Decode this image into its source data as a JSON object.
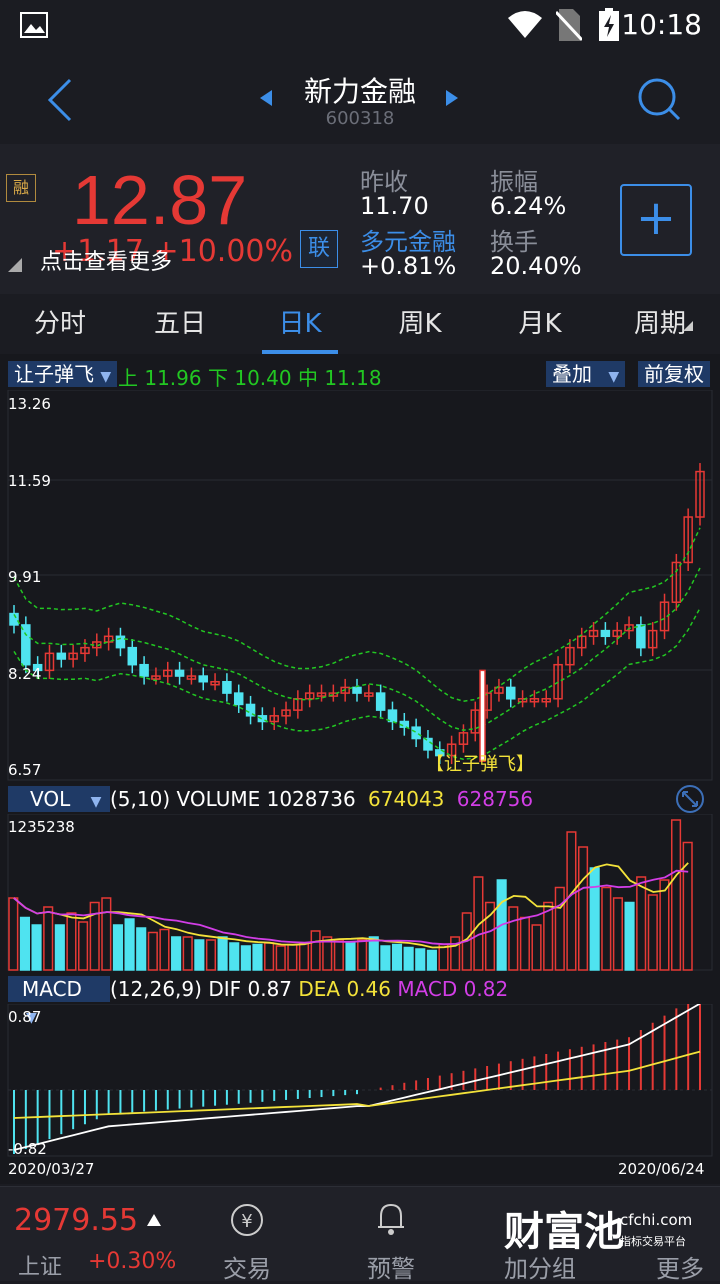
{
  "status": {
    "time": "10:18"
  },
  "header": {
    "title": "新力金融",
    "code": "600318"
  },
  "quote": {
    "price": "12.87",
    "change": "+1.17 +10.00%",
    "more_link": "点击查看更多",
    "badge_rong": "融",
    "badge_lian": "联",
    "prev_close_label": "昨收",
    "prev_close": "11.70",
    "amplitude_label": "振幅",
    "amplitude": "6.24%",
    "sector_label": "多元金融",
    "sector_change": "+0.81%",
    "turnover_label": "换手",
    "turnover": "20.40%",
    "add_button": "+"
  },
  "tabs": [
    "分时",
    "五日",
    "日K",
    "周K",
    "月K",
    "周期"
  ],
  "active_tab": "日K",
  "main_chart": {
    "indicator": "让子弹飞",
    "upper_label": "上",
    "upper": "11.96",
    "lower_label": "下",
    "lower": "10.40",
    "mid_label": "中",
    "mid": "11.18",
    "overlay_button": "叠加",
    "adjust_button": "前复权",
    "y_ticks": [
      "13.26",
      "11.59",
      "9.91",
      "8.24",
      "6.57"
    ],
    "signal_label": "【让子弹飞】"
  },
  "volume_panel": {
    "indicator": "VOL",
    "params": "(5,10) VOLUME",
    "volume": "1028736",
    "ma5": "674043",
    "ma10": "628756",
    "y_max": "1235238"
  },
  "macd_panel": {
    "indicator": "MACD",
    "params": "(12,26,9)",
    "dif_label": "DIF",
    "dif": "0.87",
    "dea_label": "DEA",
    "dea": "0.46",
    "macd_label": "MACD",
    "macd": "0.82",
    "y_max": "0.87",
    "y_min": "-0.82"
  },
  "dates": {
    "start": "2020/03/27",
    "end": "2020/06/24"
  },
  "bottom": {
    "index_value": "2979.55",
    "index_name": "上证",
    "index_change": "+0.30%",
    "trade": "交易",
    "alert": "预警",
    "watch": "加分组",
    "more": "更多",
    "watermark": "财富池",
    "watermark_site": "cfchi.com",
    "watermark_sub": "指标交易平台"
  },
  "colors": {
    "up": "#e53935",
    "down": "#4fe3f0",
    "accent": "#3c8ee8",
    "band": "#22c722",
    "ma5": "#f3e23a",
    "ma10": "#d23ee6"
  }
}
